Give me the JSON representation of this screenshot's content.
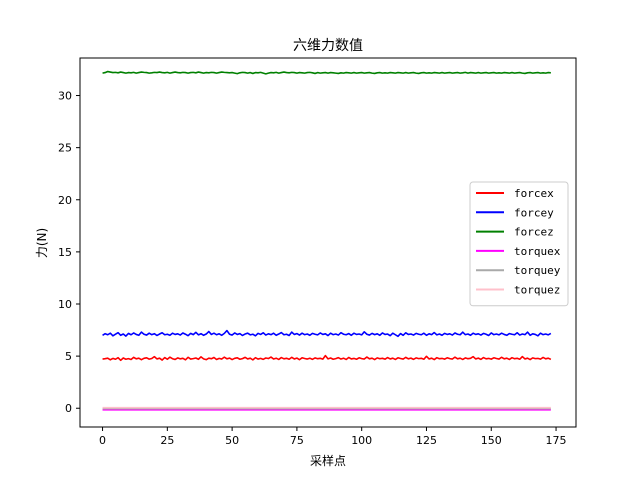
{
  "chart_data": {
    "type": "line",
    "title": "六维力数值",
    "xlabel": "采样点",
    "ylabel": "力(N)",
    "xlim": [
      -8.7,
      182.7
    ],
    "ylim": [
      -1.8,
      33.6
    ],
    "xticks": [
      0,
      25,
      50,
      75,
      100,
      125,
      150,
      175
    ],
    "yticks": [
      0,
      5,
      10,
      15,
      20,
      25,
      30
    ],
    "x_start": 0,
    "x_end": 173,
    "legend_position": "center-right",
    "grid": false,
    "series": [
      {
        "name": "forcex",
        "color": "#ff0000",
        "mean": 4.8,
        "values": [
          4.72,
          4.75,
          4.8,
          4.65,
          4.78,
          4.7,
          4.85,
          4.6,
          4.82,
          4.7,
          4.76,
          4.68,
          4.88,
          4.74,
          4.8,
          4.66,
          4.79,
          4.84,
          4.71,
          4.77,
          4.95,
          4.73,
          4.8,
          4.62,
          4.86,
          4.7,
          4.9,
          4.75,
          4.68,
          4.83,
          4.74,
          4.79,
          4.65,
          4.89,
          4.72,
          4.76,
          4.82,
          4.7,
          4.93,
          4.74,
          4.66,
          4.8,
          4.75,
          4.87,
          4.68,
          4.78,
          4.72,
          4.9,
          4.74,
          4.81,
          4.67,
          4.79,
          4.84,
          4.7,
          4.76,
          4.88,
          4.73,
          4.8,
          4.64,
          4.85,
          4.72,
          4.78,
          4.69,
          4.82,
          4.77,
          4.91,
          4.72,
          4.8,
          4.68,
          4.86,
          4.74,
          4.79,
          4.7,
          4.88,
          4.73,
          4.81,
          4.66,
          4.84,
          4.77,
          4.72,
          4.8,
          4.69,
          4.83,
          4.75,
          4.79,
          4.71,
          5.05,
          4.74,
          4.82,
          4.7,
          4.76,
          4.85,
          4.72,
          4.8,
          4.68,
          4.87,
          4.73,
          4.78,
          4.7,
          4.84,
          4.76,
          4.72,
          4.91,
          4.74,
          4.8,
          4.67,
          4.83,
          4.75,
          4.79,
          4.71,
          4.86,
          4.73,
          4.8,
          4.68,
          4.84,
          4.77,
          4.72,
          4.88,
          4.74,
          4.81,
          4.69,
          4.83,
          4.76,
          4.79,
          4.7,
          4.98,
          4.73,
          4.8,
          4.67,
          4.85,
          4.75,
          4.78,
          4.71,
          4.84,
          4.76,
          4.72,
          4.9,
          4.74,
          4.8,
          4.68,
          4.83,
          4.75,
          4.79,
          4.95,
          4.73,
          4.81,
          4.69,
          4.86,
          4.74,
          4.78,
          4.71,
          4.84,
          4.77,
          4.72,
          4.89,
          4.74,
          4.8,
          4.68,
          4.85,
          4.75,
          4.79,
          4.7,
          4.96,
          4.73,
          4.8,
          4.67,
          4.83,
          4.76,
          4.78,
          4.71,
          4.87,
          4.74,
          4.8,
          4.69,
          4.82,
          4.75,
          4.78,
          4.66
        ]
      },
      {
        "name": "forcey",
        "color": "#0000ff",
        "mean": 7.1,
        "values": [
          7.0,
          7.15,
          7.05,
          7.2,
          6.95,
          7.1,
          7.25,
          7.0,
          7.12,
          6.92,
          7.18,
          7.05,
          7.22,
          7.08,
          7.0,
          7.3,
          7.1,
          7.02,
          7.2,
          7.06,
          7.15,
          6.98,
          7.12,
          7.24,
          7.05,
          7.1,
          7.0,
          7.2,
          7.08,
          7.14,
          7.02,
          7.22,
          7.1,
          6.96,
          7.18,
          7.06,
          7.28,
          7.04,
          7.15,
          7.0,
          7.12,
          7.36,
          7.08,
          7.2,
          7.05,
          7.14,
          7.0,
          7.18,
          7.45,
          7.1,
          7.02,
          7.22,
          7.08,
          7.16,
          6.98,
          7.12,
          7.2,
          7.04,
          7.1,
          6.95,
          7.18,
          7.08,
          7.24,
          7.02,
          7.14,
          7.06,
          7.2,
          7.0,
          7.12,
          7.26,
          7.05,
          7.1,
          6.98,
          7.3,
          7.08,
          7.16,
          7.02,
          7.2,
          7.06,
          7.12,
          7.0,
          7.18,
          7.1,
          7.04,
          7.22,
          7.08,
          7.14,
          6.97,
          7.2,
          7.06,
          7.12,
          7.02,
          7.25,
          7.1,
          7.05,
          7.16,
          7.0,
          7.2,
          7.08,
          7.12,
          7.04,
          7.33,
          7.1,
          7.02,
          7.18,
          7.06,
          7.14,
          7.0,
          7.22,
          7.08,
          7.12,
          6.96,
          7.2,
          7.05,
          6.9,
          7.16,
          7.0,
          7.24,
          7.08,
          7.12,
          7.02,
          7.18,
          7.1,
          7.05,
          7.2,
          7.0,
          7.14,
          7.06,
          7.26,
          7.04,
          7.12,
          7.0,
          7.18,
          7.08,
          7.14,
          7.02,
          7.22,
          7.1,
          7.05,
          7.3,
          7.06,
          7.12,
          7.0,
          7.2,
          7.08,
          7.14,
          7.02,
          7.18,
          7.1,
          6.98,
          7.22,
          7.06,
          7.12,
          7.04,
          7.2,
          7.08,
          7.0,
          7.16,
          7.1,
          7.05,
          7.24,
          7.02,
          7.12,
          7.06,
          7.3,
          7.0,
          7.14,
          7.08,
          6.95,
          7.2,
          7.06,
          7.12,
          7.04,
          7.18,
          7.1
        ]
      },
      {
        "name": "forcez",
        "color": "#008000",
        "mean": 32.2,
        "values": [
          32.15,
          32.2,
          32.3,
          32.25,
          32.2,
          32.22,
          32.18,
          32.25,
          32.2,
          32.15,
          32.2,
          32.18,
          32.22,
          32.15,
          32.2,
          32.25,
          32.22,
          32.2,
          32.15,
          32.18,
          32.22,
          32.2,
          32.25,
          32.2,
          32.18,
          32.22,
          32.15,
          32.2,
          32.25,
          32.2,
          32.18,
          32.22,
          32.2,
          32.15,
          32.2,
          32.22,
          32.18,
          32.25,
          32.2,
          32.15,
          32.2,
          32.18,
          32.22,
          32.2,
          32.15,
          32.2,
          32.25,
          32.22,
          32.2,
          32.18,
          32.2,
          32.15,
          32.1,
          32.18,
          32.22,
          32.2,
          32.15,
          32.2,
          32.12,
          32.2,
          32.18,
          32.22,
          32.15,
          32.08,
          32.15,
          32.2,
          32.18,
          32.22,
          32.15,
          32.2,
          32.25,
          32.2,
          32.18,
          32.22,
          32.2,
          32.15,
          32.2,
          32.18,
          32.15,
          32.2,
          32.22,
          32.18,
          32.12,
          32.2,
          32.15,
          32.18,
          32.2,
          32.15,
          32.2,
          32.18,
          32.15,
          32.12,
          32.18,
          32.15,
          32.2,
          32.18,
          32.15,
          32.2,
          32.15,
          32.18,
          32.2,
          32.15,
          32.18,
          32.2,
          32.15,
          32.12,
          32.18,
          32.2,
          32.15,
          32.18,
          32.15,
          32.2,
          32.18,
          32.15,
          32.2,
          32.18,
          32.15,
          32.2,
          32.15,
          32.18,
          32.2,
          32.15,
          32.12,
          32.18,
          32.2,
          32.15,
          32.18,
          32.15,
          32.2,
          32.18,
          32.15,
          32.2,
          32.15,
          32.18,
          32.2,
          32.15,
          32.18,
          32.2,
          32.15,
          32.18,
          32.22,
          32.15,
          32.2,
          32.18,
          32.15,
          32.2,
          32.15,
          32.18,
          32.2,
          32.15,
          32.18,
          32.2,
          32.15,
          32.18,
          32.15,
          32.2,
          32.18,
          32.15,
          32.2,
          32.15,
          32.18,
          32.2,
          32.15,
          32.12,
          32.18,
          32.2,
          32.15,
          32.18,
          32.2,
          32.15,
          32.18,
          32.15,
          32.2,
          32.18,
          32.15,
          32.12
        ]
      },
      {
        "name": "torquex",
        "color": "#ff00ff",
        "mean": -0.15,
        "values": [
          -0.15,
          -0.15,
          -0.15,
          -0.15,
          -0.15,
          -0.15,
          -0.15,
          -0.15,
          -0.15,
          -0.15,
          -0.15,
          -0.15,
          -0.15,
          -0.15,
          -0.15,
          -0.15,
          -0.15,
          -0.15,
          -0.15,
          -0.15,
          -0.15,
          -0.15,
          -0.15,
          -0.15,
          -0.15,
          -0.15,
          -0.15,
          -0.15,
          -0.15,
          -0.15,
          -0.15,
          -0.15,
          -0.15,
          -0.15,
          -0.15,
          -0.15,
          -0.15,
          -0.15,
          -0.15,
          -0.15,
          -0.15,
          -0.15,
          -0.15,
          -0.15,
          -0.15,
          -0.15,
          -0.15,
          -0.15,
          -0.15,
          -0.15,
          -0.15,
          -0.15,
          -0.15,
          -0.15,
          -0.15,
          -0.15,
          -0.15,
          -0.15,
          -0.15,
          -0.15,
          -0.15,
          -0.15,
          -0.15,
          -0.15,
          -0.15,
          -0.15,
          -0.15,
          -0.15,
          -0.15,
          -0.15,
          -0.15,
          -0.15,
          -0.15,
          -0.15,
          -0.15,
          -0.15,
          -0.15,
          -0.15,
          -0.15,
          -0.15,
          -0.15,
          -0.15,
          -0.15,
          -0.15,
          -0.15,
          -0.15,
          -0.15,
          -0.15,
          -0.15,
          -0.15,
          -0.15,
          -0.15,
          -0.15,
          -0.15,
          -0.15,
          -0.15,
          -0.15,
          -0.15,
          -0.15,
          -0.15,
          -0.15,
          -0.15,
          -0.15,
          -0.15,
          -0.15,
          -0.15,
          -0.15,
          -0.15,
          -0.15,
          -0.15,
          -0.15,
          -0.15,
          -0.15,
          -0.15,
          -0.15,
          -0.15,
          -0.15,
          -0.15,
          -0.15,
          -0.15,
          -0.15,
          -0.15,
          -0.15,
          -0.15,
          -0.15,
          -0.15,
          -0.15,
          -0.15,
          -0.15,
          -0.15,
          -0.15,
          -0.15,
          -0.15,
          -0.15,
          -0.15,
          -0.15,
          -0.15,
          -0.15,
          -0.15,
          -0.15,
          -0.15,
          -0.15,
          -0.15,
          -0.15,
          -0.15,
          -0.15,
          -0.15,
          -0.15,
          -0.15,
          -0.15,
          -0.15,
          -0.15,
          -0.15,
          -0.15,
          -0.15,
          -0.15,
          -0.15,
          -0.15,
          -0.15,
          -0.15,
          -0.15,
          -0.15,
          -0.15,
          -0.15,
          -0.15,
          -0.15,
          -0.15,
          -0.15,
          -0.15,
          -0.15,
          -0.15,
          -0.15,
          -0.15,
          -0.15,
          -0.15,
          -0.15,
          -0.15,
          -0.15
        ]
      },
      {
        "name": "torquey",
        "color": "#a9a9a9",
        "mean": -0.05,
        "values": [
          -0.05,
          -0.05,
          -0.05,
          -0.05,
          -0.05,
          -0.05,
          -0.05,
          -0.05,
          -0.05,
          -0.05,
          -0.05,
          -0.05,
          -0.05,
          -0.05,
          -0.05,
          -0.05,
          -0.05,
          -0.05,
          -0.05,
          -0.05,
          -0.05,
          -0.05,
          -0.05,
          -0.05,
          -0.05,
          -0.05,
          -0.05,
          -0.05,
          -0.05,
          -0.05,
          -0.05,
          -0.05,
          -0.05,
          -0.05,
          -0.05,
          -0.05,
          -0.05,
          -0.05,
          -0.05,
          -0.05,
          -0.05,
          -0.05,
          -0.05,
          -0.05,
          -0.05,
          -0.05,
          -0.05,
          -0.05,
          -0.05,
          -0.05,
          -0.05,
          -0.05,
          -0.05,
          -0.05,
          -0.05,
          -0.05,
          -0.05,
          -0.05,
          -0.05,
          -0.05,
          -0.05,
          -0.05,
          -0.05,
          -0.05,
          -0.05,
          -0.05,
          -0.05,
          -0.05,
          -0.05,
          -0.05,
          -0.05,
          -0.05,
          -0.05,
          -0.05,
          -0.05,
          -0.05,
          -0.05,
          -0.05,
          -0.05,
          -0.05,
          -0.05,
          -0.05,
          -0.05,
          -0.05,
          -0.05,
          -0.05,
          -0.05,
          -0.05,
          -0.05,
          -0.05,
          -0.05,
          -0.05,
          -0.05,
          -0.05,
          -0.05,
          -0.05,
          -0.05,
          -0.05,
          -0.05,
          -0.05,
          -0.05,
          -0.05,
          -0.05,
          -0.05,
          -0.05,
          -0.05,
          -0.05,
          -0.05,
          -0.05,
          -0.05,
          -0.05,
          -0.05,
          -0.05,
          -0.05,
          -0.05,
          -0.05,
          -0.05,
          -0.05,
          -0.05,
          -0.05,
          -0.05,
          -0.05,
          -0.05,
          -0.05,
          -0.05,
          -0.05,
          -0.05,
          -0.05,
          -0.05,
          -0.05,
          -0.05,
          -0.05,
          -0.05,
          -0.05,
          -0.05,
          -0.05,
          -0.05,
          -0.05,
          -0.05,
          -0.05,
          -0.05,
          -0.05,
          -0.05,
          -0.05,
          -0.05,
          -0.05,
          -0.05,
          -0.05,
          -0.05,
          -0.05,
          -0.05,
          -0.05,
          -0.05,
          -0.05,
          -0.05,
          -0.05,
          -0.05,
          -0.05,
          -0.05,
          -0.05,
          -0.05,
          -0.05,
          -0.05,
          -0.05,
          -0.05,
          -0.05,
          -0.05,
          -0.05,
          -0.05,
          -0.05,
          -0.05,
          -0.05,
          -0.05,
          -0.05,
          -0.05,
          -0.05
        ]
      },
      {
        "name": "torquez",
        "color": "#ffc0cb",
        "mean": 0.05,
        "values": [
          0.05,
          0.05,
          0.05,
          0.05,
          0.05,
          0.05,
          0.05,
          0.05,
          0.05,
          0.05,
          0.05,
          0.05,
          0.05,
          0.05,
          0.05,
          0.05,
          0.05,
          0.05,
          0.05,
          0.05,
          0.05,
          0.05,
          0.05,
          0.05,
          0.05,
          0.05,
          0.05,
          0.05,
          0.05,
          0.05,
          0.05,
          0.05,
          0.05,
          0.05,
          0.05,
          0.05,
          0.05,
          0.05,
          0.05,
          0.05,
          0.05,
          0.05,
          0.05,
          0.05,
          0.05,
          0.05,
          0.05,
          0.05,
          0.05,
          0.05,
          0.05,
          0.05,
          0.05,
          0.05,
          0.05,
          0.05,
          0.05,
          0.05,
          0.05,
          0.05,
          0.05,
          0.05,
          0.05,
          0.05,
          0.05,
          0.05,
          0.05,
          0.05,
          0.05,
          0.05,
          0.05,
          0.05,
          0.05,
          0.05,
          0.05,
          0.05,
          0.05,
          0.05,
          0.05,
          0.05,
          0.05,
          0.05,
          0.05,
          0.05,
          0.05,
          0.05,
          0.05,
          0.05,
          0.05,
          0.05,
          0.05,
          0.05,
          0.05,
          0.05,
          0.05,
          0.05,
          0.05,
          0.05,
          0.05,
          0.05,
          0.05,
          0.05,
          0.05,
          0.05,
          0.05,
          0.05,
          0.05,
          0.05,
          0.05,
          0.05,
          0.05,
          0.05,
          0.05,
          0.05,
          0.05,
          0.05,
          0.05,
          0.05,
          0.05,
          0.05,
          0.05,
          0.05,
          0.05,
          0.05,
          0.05,
          0.05,
          0.05,
          0.05,
          0.05,
          0.05,
          0.05,
          0.05,
          0.05,
          0.05,
          0.05,
          0.05,
          0.05,
          0.05,
          0.05,
          0.05,
          0.05,
          0.05,
          0.05,
          0.05,
          0.05,
          0.05,
          0.05,
          0.05,
          0.05,
          0.05,
          0.05,
          0.05,
          0.05,
          0.05,
          0.05,
          0.05,
          0.05,
          0.05,
          0.05,
          0.05,
          0.05,
          0.05,
          0.05,
          0.05,
          0.05,
          0.05,
          0.05,
          0.05,
          0.05,
          0.05,
          0.05,
          0.05,
          0.05,
          0.05,
          0.05,
          0.05,
          0.05
        ]
      }
    ]
  }
}
